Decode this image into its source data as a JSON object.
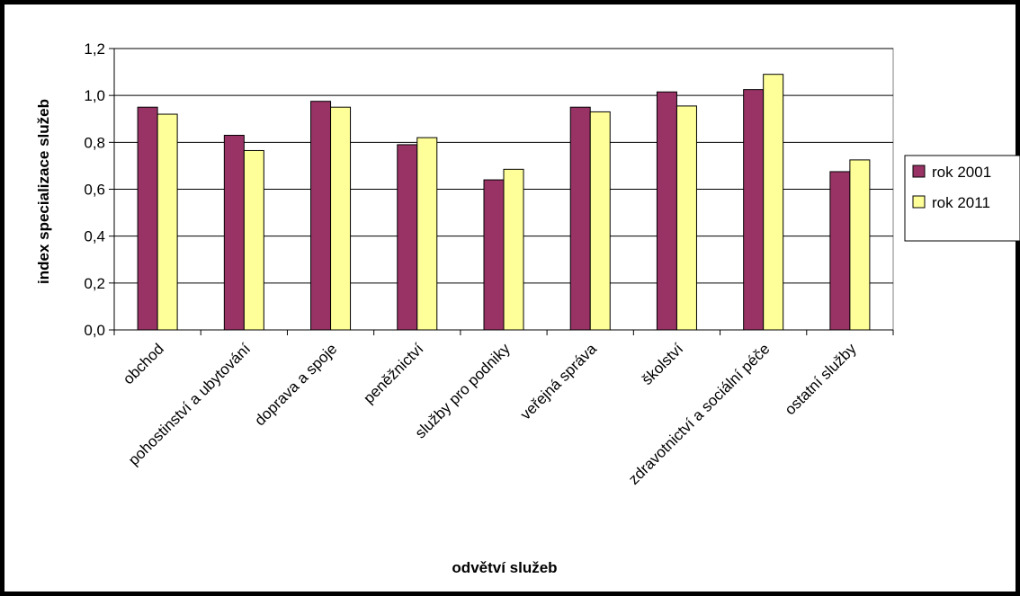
{
  "chart_data": {
    "type": "bar",
    "title": "",
    "xlabel": "odvětví služeb",
    "ylabel": "index specializace služeb",
    "ylim": [
      0,
      1.2
    ],
    "yticks": [
      "0,0",
      "0,2",
      "0,4",
      "0,6",
      "0,8",
      "1,0",
      "1,2"
    ],
    "grid": true,
    "legend_position": "right",
    "categories": [
      "obchod",
      "pohostinství a ubytování",
      "doprava a spoje",
      "peněžnictví",
      "služby pro podniky",
      "veřejná správa",
      "školství",
      "zdravotnictví a sociální péče",
      "ostatní služby"
    ],
    "series": [
      {
        "name": "rok 2001",
        "color": "#993366",
        "values": [
          0.95,
          0.83,
          0.975,
          0.79,
          0.64,
          0.95,
          1.015,
          1.025,
          0.675
        ]
      },
      {
        "name": "rok 2011",
        "color": "#FFFF99",
        "values": [
          0.92,
          0.765,
          0.95,
          0.82,
          0.685,
          0.93,
          0.955,
          1.09,
          0.725
        ]
      }
    ]
  }
}
